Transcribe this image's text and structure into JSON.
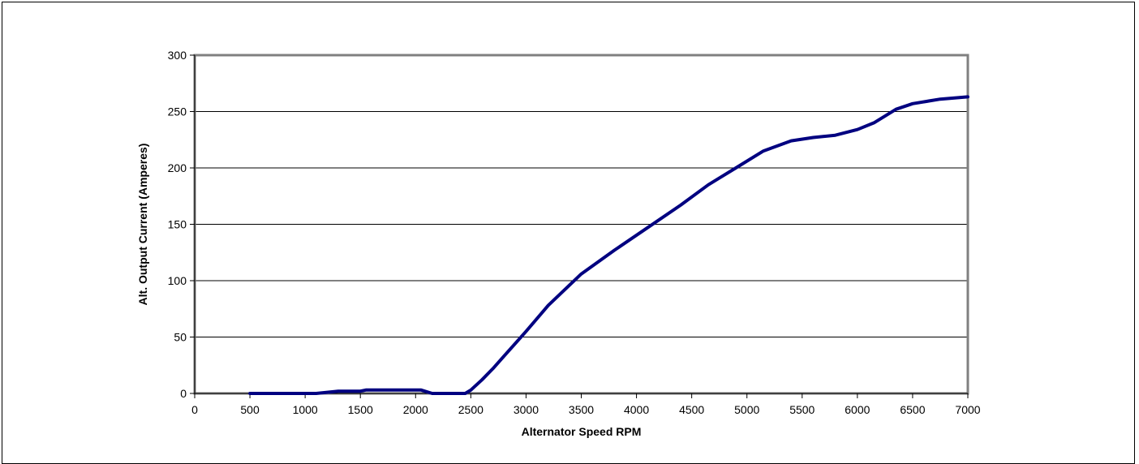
{
  "chart_data": {
    "type": "line",
    "title": "",
    "xlabel": "Alternator Speed RPM",
    "ylabel": "Alt. Output Current (Amperes)",
    "xlim": [
      0,
      7000
    ],
    "ylim": [
      0,
      300
    ],
    "xticks": [
      0,
      500,
      1000,
      1500,
      2000,
      2500,
      3000,
      3500,
      4000,
      4500,
      5000,
      5500,
      6000,
      6500,
      7000
    ],
    "yticks": [
      0,
      50,
      100,
      150,
      200,
      250,
      300
    ],
    "grid": "horizontal",
    "legend": "none",
    "colors": {
      "line": "#000080",
      "plot_border": "#808080",
      "gridline": "#000000"
    },
    "series": [
      {
        "x": [
          500,
          1000,
          1100,
          1300,
          1500,
          1550,
          1800,
          2000,
          2050,
          2150,
          2450,
          2500,
          2600,
          2700,
          2800,
          3000,
          3200,
          3500,
          3800,
          4100,
          4400,
          4650,
          4900,
          5150,
          5400,
          5600,
          5800,
          6000,
          6150,
          6350,
          6500,
          6750,
          7000
        ],
        "y": [
          0,
          0,
          0,
          2,
          2,
          3,
          3,
          3,
          3,
          0,
          0,
          3,
          12,
          22,
          33,
          55,
          78,
          106,
          127,
          147,
          167,
          185,
          200,
          215,
          224,
          227,
          229,
          234,
          240,
          252,
          257,
          261,
          263
        ]
      }
    ]
  }
}
